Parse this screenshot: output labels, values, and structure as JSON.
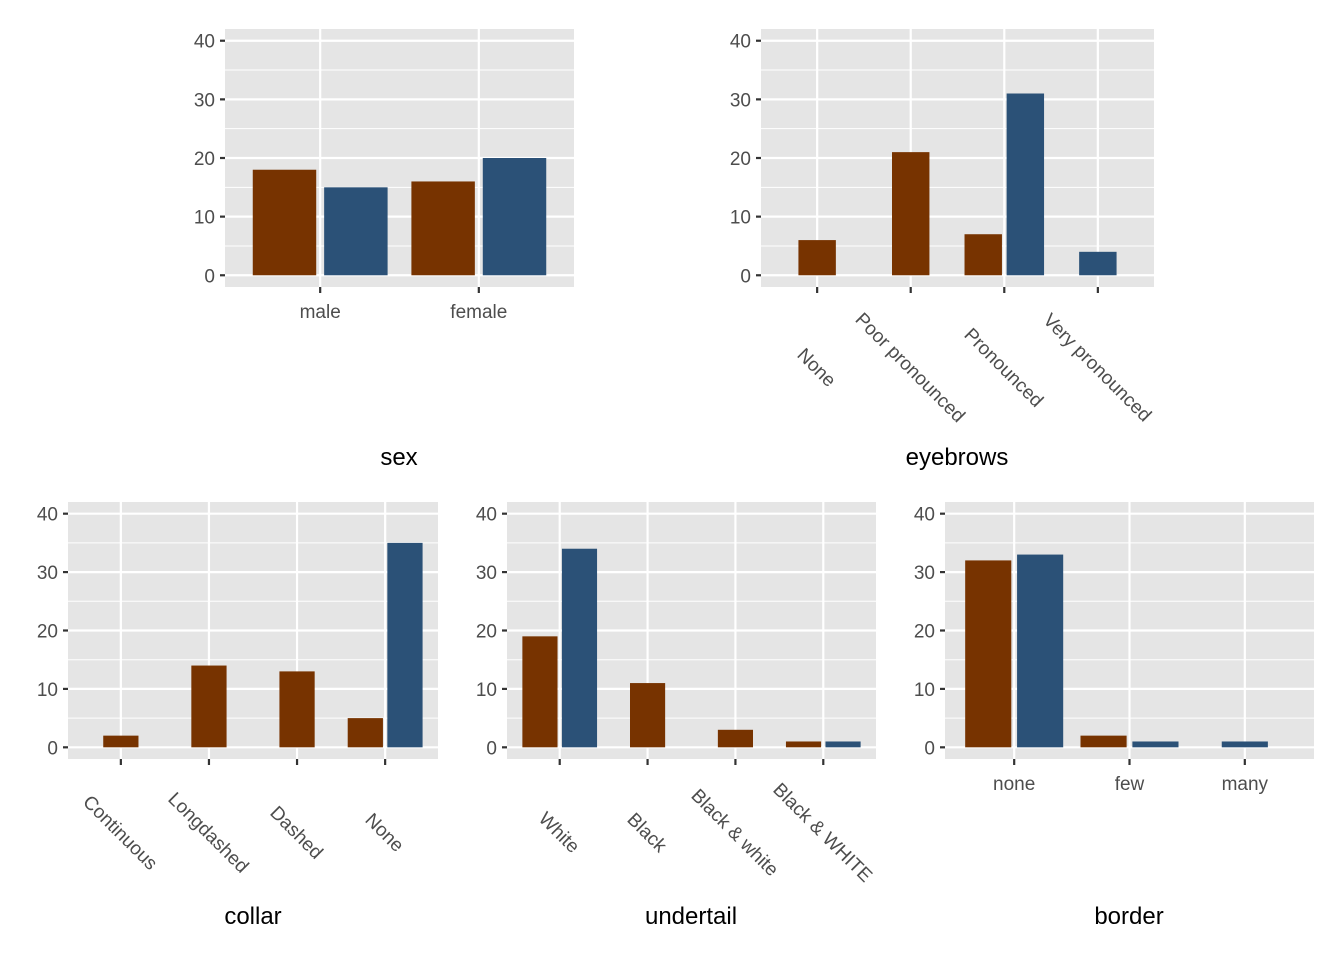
{
  "colors": {
    "series1": "#773300",
    "series2": "#2b5177",
    "panel_bg": "#e5e5e5",
    "grid": "#ffffff"
  },
  "chart_data": [
    {
      "type": "bar",
      "xlabel": "sex",
      "categories": [
        "male",
        "female"
      ],
      "series": [
        {
          "values": [
            18,
            16
          ]
        },
        {
          "values": [
            15,
            20
          ]
        }
      ],
      "ylim": [
        0,
        40
      ],
      "yticks": [
        "0",
        "10",
        "20",
        "30",
        "40"
      ],
      "grid": true,
      "xlabel_rotation": 0
    },
    {
      "type": "bar",
      "xlabel": "eyebrows",
      "categories": [
        "None",
        "Poor pronounced",
        "Pronounced",
        "Very pronounced"
      ],
      "series": [
        {
          "values": [
            6,
            21,
            7,
            null
          ]
        },
        {
          "values": [
            null,
            null,
            31,
            4
          ]
        }
      ],
      "ylim": [
        0,
        40
      ],
      "yticks": [
        "0",
        "10",
        "20",
        "30",
        "40"
      ],
      "grid": true,
      "xlabel_rotation": -45
    },
    {
      "type": "bar",
      "xlabel": "collar",
      "categories": [
        "Continuous",
        "Longdashed",
        "Dashed",
        "None"
      ],
      "series": [
        {
          "values": [
            2,
            14,
            13,
            5
          ]
        },
        {
          "values": [
            null,
            null,
            null,
            35
          ]
        }
      ],
      "ylim": [
        0,
        40
      ],
      "yticks": [
        "0",
        "10",
        "20",
        "30",
        "40"
      ],
      "grid": true,
      "xlabel_rotation": -45
    },
    {
      "type": "bar",
      "xlabel": "undertail",
      "categories": [
        "White",
        "Black",
        "Black & white",
        "Black & WHITE"
      ],
      "series": [
        {
          "values": [
            19,
            11,
            3,
            1
          ]
        },
        {
          "values": [
            34,
            null,
            null,
            1
          ]
        }
      ],
      "ylim": [
        0,
        40
      ],
      "yticks": [
        "0",
        "10",
        "20",
        "30",
        "40"
      ],
      "grid": true,
      "xlabel_rotation": -45
    },
    {
      "type": "bar",
      "xlabel": "border",
      "categories": [
        "none",
        "few",
        "many"
      ],
      "series": [
        {
          "values": [
            32,
            2,
            null
          ]
        },
        {
          "values": [
            33,
            1,
            1
          ]
        }
      ],
      "ylim": [
        0,
        40
      ],
      "yticks": [
        "0",
        "10",
        "20",
        "30",
        "40"
      ],
      "grid": true,
      "xlabel_rotation": 0
    }
  ]
}
